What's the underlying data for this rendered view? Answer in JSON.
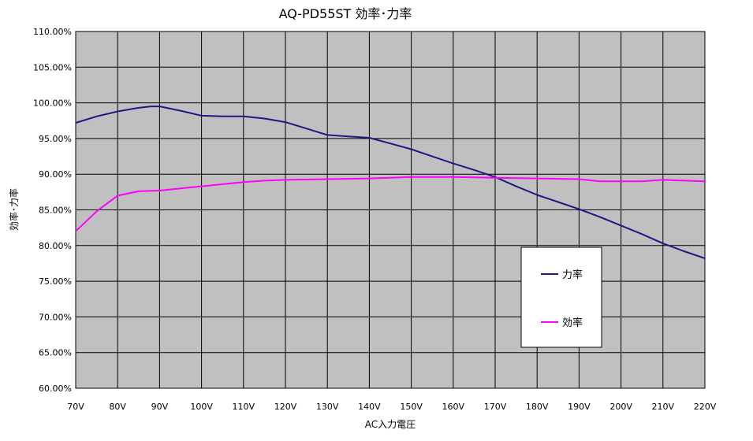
{
  "chart_data": {
    "type": "line",
    "title": "AQ-PD55ST 効率･力率",
    "xlabel": "AC入力電圧",
    "ylabel": "効率･力率",
    "x": [
      70,
      80,
      90,
      100,
      110,
      120,
      130,
      140,
      150,
      160,
      170,
      180,
      190,
      200,
      210,
      220
    ],
    "x_tick_labels": [
      "70V",
      "80V",
      "90V",
      "100V",
      "110V",
      "120V",
      "130V",
      "140V",
      "150V",
      "160V",
      "170V",
      "180V",
      "190V",
      "200V",
      "210V",
      "220V"
    ],
    "y_tick_labels": [
      "60.00%",
      "65.00%",
      "70.00%",
      "75.00%",
      "80.00%",
      "85.00%",
      "90.00%",
      "95.00%",
      "100.00%",
      "105.00%",
      "110.00%"
    ],
    "xlim": [
      70,
      220
    ],
    "ylim": [
      60,
      110
    ],
    "y_unit": "%",
    "grid": true,
    "legend_position": "lower-right",
    "series": [
      {
        "name": "力率",
        "color": "#1a1a80",
        "x": [
          70,
          75,
          80,
          85,
          88,
          90,
          95,
          100,
          105,
          110,
          115,
          120,
          125,
          130,
          135,
          140,
          145,
          150,
          155,
          160,
          165,
          170,
          175,
          180,
          185,
          190,
          195,
          200,
          205,
          210,
          215,
          220
        ],
        "values": [
          97.2,
          98.1,
          98.8,
          99.3,
          99.5,
          99.5,
          98.9,
          98.2,
          98.1,
          98.1,
          97.8,
          97.3,
          96.4,
          95.5,
          95.3,
          95.1,
          94.3,
          93.5,
          92.5,
          91.5,
          90.6,
          89.6,
          88.3,
          87.1,
          86.1,
          85.1,
          84.0,
          82.8,
          81.6,
          80.3,
          79.2,
          78.2
        ]
      },
      {
        "name": "効率",
        "color": "#ff00ff",
        "x": [
          70,
          75,
          80,
          85,
          90,
          95,
          100,
          105,
          110,
          115,
          120,
          130,
          140,
          150,
          160,
          170,
          180,
          190,
          195,
          200,
          205,
          210,
          220
        ],
        "values": [
          82.0,
          84.8,
          87.0,
          87.6,
          87.7,
          88.0,
          88.3,
          88.6,
          88.9,
          89.1,
          89.2,
          89.3,
          89.4,
          89.6,
          89.6,
          89.5,
          89.4,
          89.3,
          89.0,
          89.0,
          89.0,
          89.2,
          89.0
        ]
      }
    ]
  }
}
